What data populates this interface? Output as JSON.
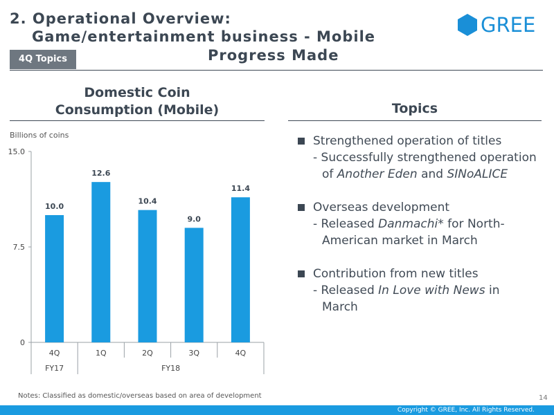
{
  "header": {
    "title_line1": "2. Operational Overview:",
    "title_line2": "Game/entertainment business - Mobile",
    "badge": "4Q Topics",
    "subtitle": "Progress Made",
    "logo_text": "GREE",
    "logo_color": "#1a8fd7"
  },
  "left_panel": {
    "title_line1": "Domestic Coin",
    "title_line2": "Consumption (Mobile)"
  },
  "chart_data": {
    "type": "bar",
    "title": "Domestic Coin Consumption (Mobile)",
    "ylabel": "Billions of coins",
    "categories": [
      "4Q",
      "1Q",
      "2Q",
      "3Q",
      "4Q"
    ],
    "groups": [
      "FY17",
      "FY18"
    ],
    "values": [
      10.0,
      12.6,
      10.4,
      9.0,
      11.4
    ],
    "value_labels": [
      "10.0",
      "12.6",
      "10.4",
      "9.0",
      "11.4"
    ],
    "yticks": [
      "0",
      "7.5",
      "15.0"
    ],
    "ylim": [
      0,
      15
    ],
    "bar_color": "#1a9be0"
  },
  "topics": {
    "title": "Topics",
    "items": [
      {
        "heading": "Strengthened operation of titles",
        "line1_prefix": "- Successfully strengthened operation",
        "line2_prefix": "of ",
        "line2_em1": "Another Eden",
        "line2_mid": " and ",
        "line2_em2": "SINoALICE"
      },
      {
        "heading": "Overseas development",
        "line1_prefix": "- Released ",
        "line1_em": "Danmachi*",
        "line1_suffix": " for North-",
        "line2": "American market in March"
      },
      {
        "heading": "Contribution from new titles",
        "line1_prefix": "- Released ",
        "line1_em": "In Love with News",
        "line1_suffix": " in",
        "line2": "March"
      }
    ]
  },
  "footer": {
    "notes": "Notes: Classified as domestic/overseas based on area of development",
    "page_number": "14",
    "copyright": "Copyright © GREE, Inc. All Rights Reserved."
  }
}
